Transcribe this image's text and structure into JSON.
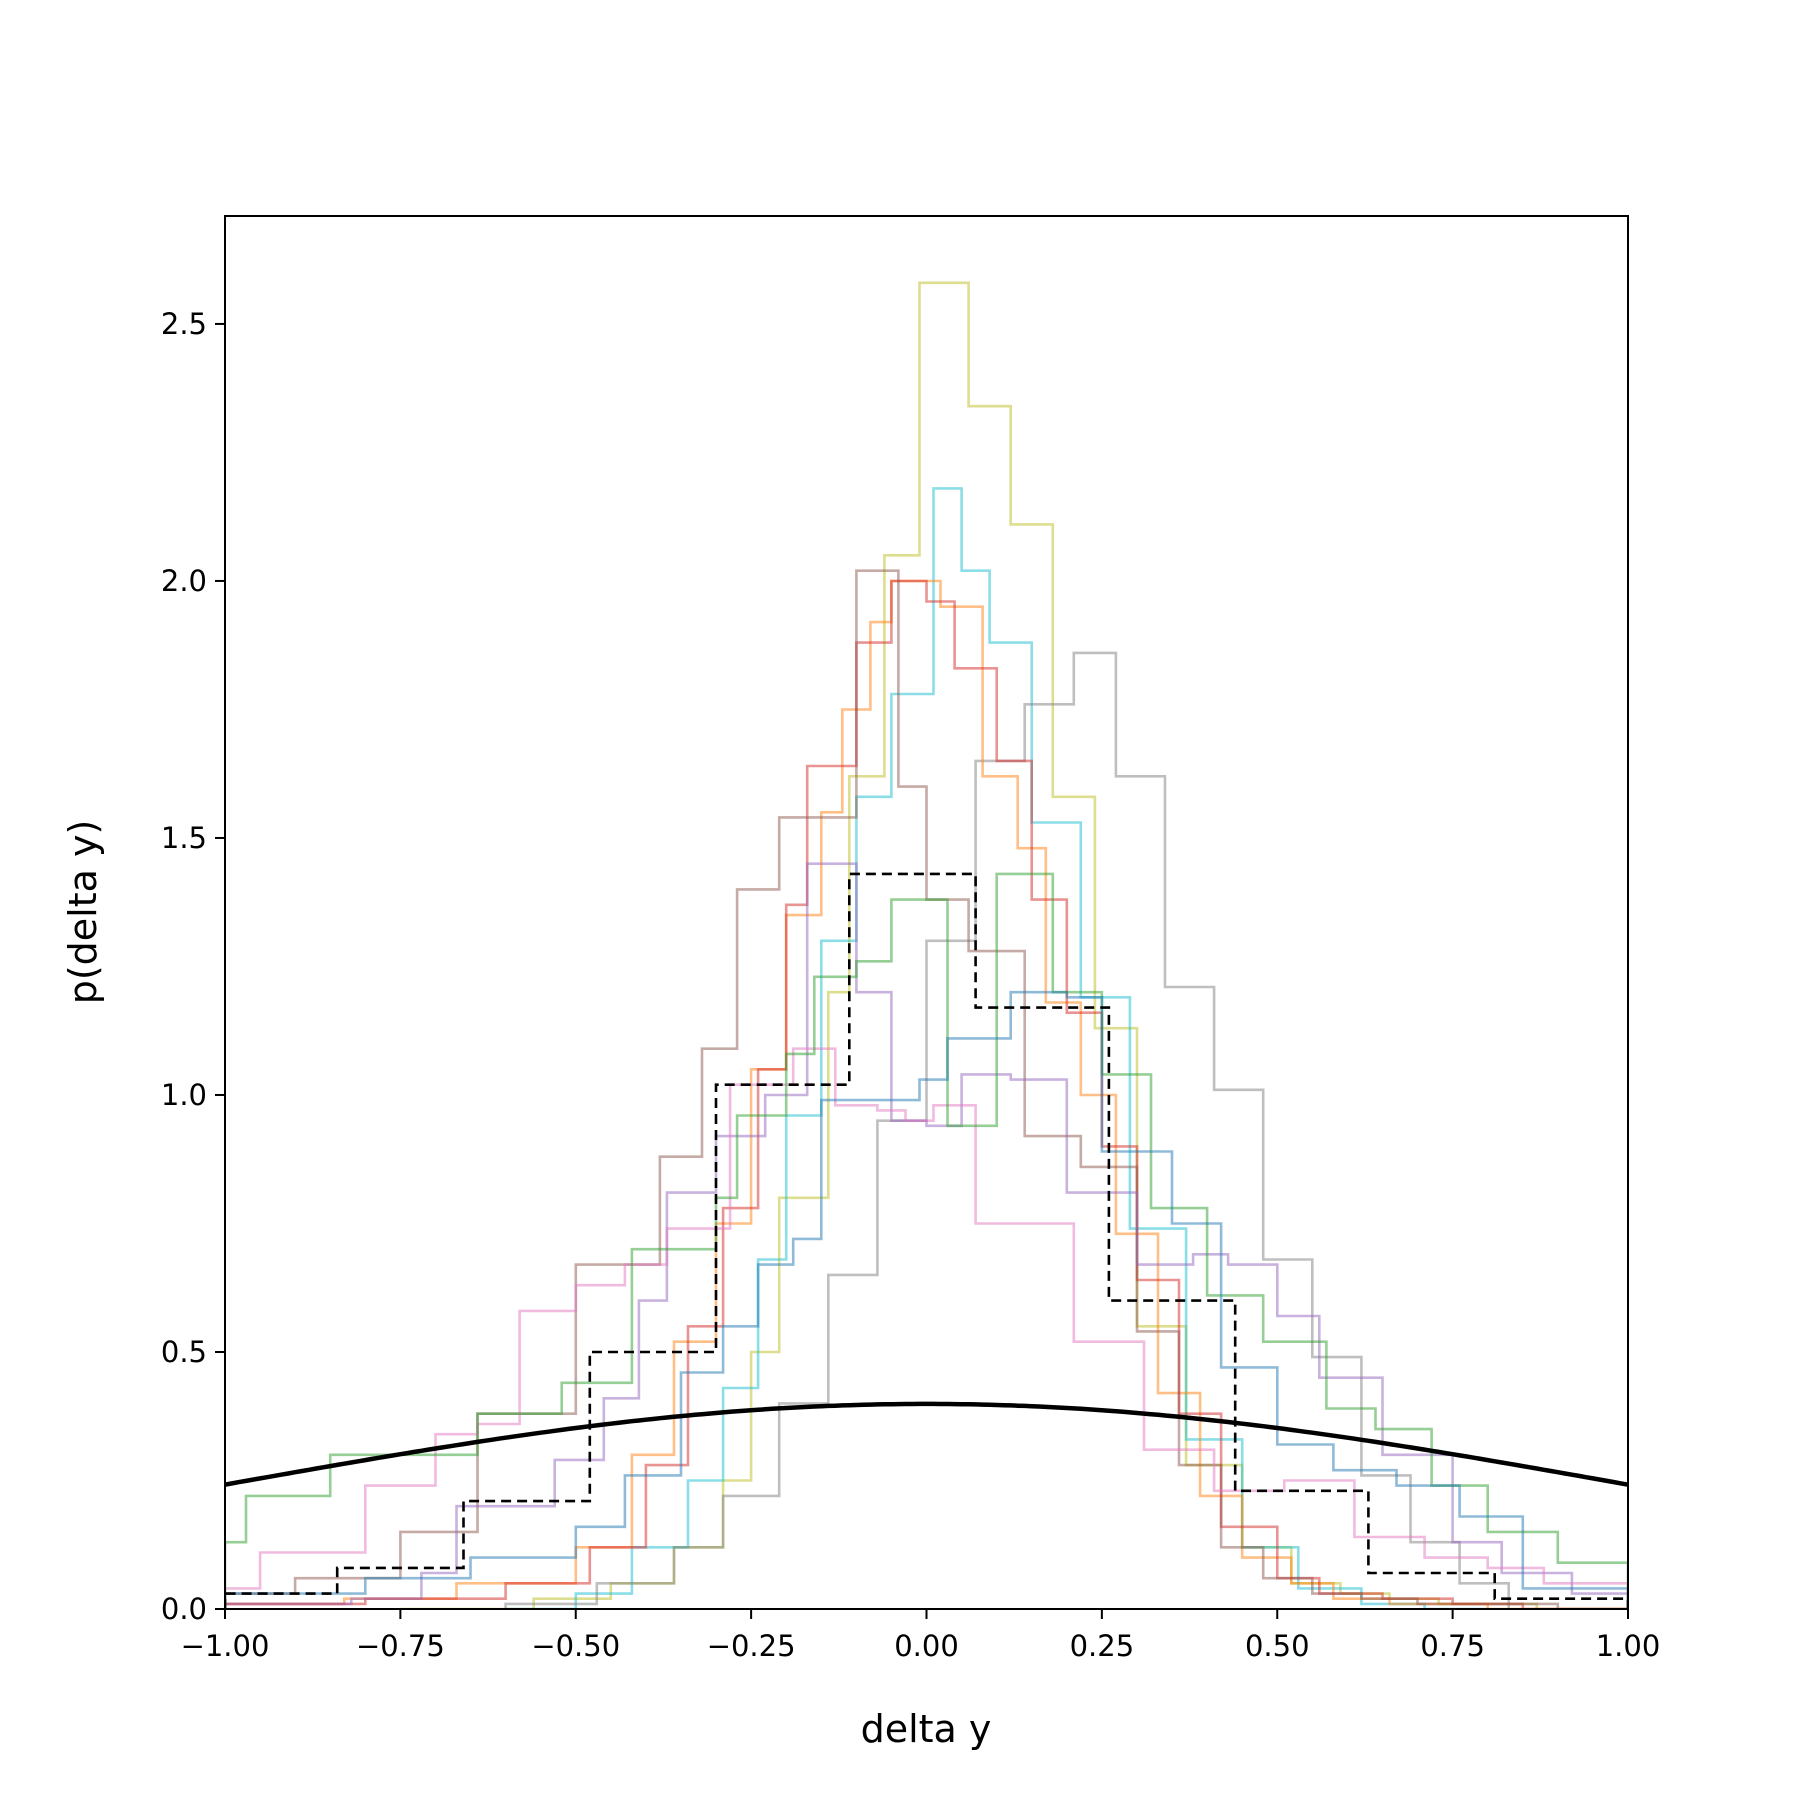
{
  "chart_data": {
    "type": "line",
    "title": "",
    "xlabel": "delta y",
    "ylabel": "p(delta y)",
    "xlim": [
      -1.0,
      1.0
    ],
    "ylim": [
      0.0,
      2.71
    ],
    "grid": false,
    "legend": "none",
    "x_ticks": [
      -1.0,
      -0.75,
      -0.5,
      -0.25,
      0.0,
      0.25,
      0.5,
      0.75,
      1.0
    ],
    "x_tick_labels": [
      "−1.00",
      "−0.75",
      "−0.50",
      "−0.25",
      "0.00",
      "0.25",
      "0.50",
      "0.75",
      "1.00"
    ],
    "y_ticks": [
      0.0,
      0.5,
      1.0,
      1.5,
      2.0,
      2.5
    ],
    "y_tick_labels": [
      "0.0",
      "0.5",
      "1.0",
      "1.5",
      "2.0",
      "2.5"
    ],
    "step_series": [
      {
        "color": "#bcbd22",
        "edges": [
          -0.75,
          -0.56,
          -0.45,
          -0.36,
          -0.29,
          -0.25,
          -0.21,
          -0.14,
          -0.11,
          -0.06,
          -0.01,
          0.06,
          0.12,
          0.18,
          0.24,
          0.3,
          0.37,
          0.45,
          0.52,
          0.59,
          0.66,
          0.73,
          0.8,
          0.87,
          0.94,
          1.0
        ],
        "values": [
          0.0,
          0.02,
          0.05,
          0.12,
          0.25,
          0.5,
          0.8,
          1.2,
          1.62,
          2.05,
          2.58,
          2.34,
          2.11,
          1.58,
          1.13,
          0.55,
          0.28,
          0.12,
          0.05,
          0.03,
          0.02,
          0.01,
          0.01,
          0.0,
          0.0
        ]
      },
      {
        "color": "#17becf",
        "edges": [
          -0.6,
          -0.5,
          -0.42,
          -0.34,
          -0.29,
          -0.24,
          -0.2,
          -0.15,
          -0.1,
          -0.05,
          0.01,
          0.05,
          0.09,
          0.15,
          0.22,
          0.29,
          0.37,
          0.45,
          0.53,
          0.62,
          0.71,
          0.8
        ],
        "values": [
          0.0,
          0.03,
          0.12,
          0.25,
          0.43,
          0.68,
          0.96,
          1.3,
          1.58,
          1.78,
          2.18,
          2.02,
          1.88,
          1.53,
          1.19,
          0.74,
          0.33,
          0.12,
          0.04,
          0.01,
          0.0
        ]
      },
      {
        "color": "#7f7f7f",
        "edges": [
          -0.6,
          -0.47,
          -0.36,
          -0.29,
          -0.21,
          -0.14,
          -0.07,
          0.0,
          0.07,
          0.14,
          0.21,
          0.27,
          0.34,
          0.41,
          0.48,
          0.55,
          0.62,
          0.69,
          0.76,
          0.83
        ],
        "values": [
          0.01,
          0.05,
          0.12,
          0.22,
          0.4,
          0.65,
          0.95,
          1.3,
          1.65,
          1.76,
          1.86,
          1.62,
          1.21,
          1.01,
          0.68,
          0.49,
          0.26,
          0.13,
          0.05
        ]
      },
      {
        "color": "#ff7f0e",
        "edges": [
          -1.0,
          -0.83,
          -0.67,
          -0.5,
          -0.42,
          -0.36,
          -0.3,
          -0.25,
          -0.2,
          -0.15,
          -0.12,
          -0.08,
          -0.05,
          0.02,
          0.08,
          0.13,
          0.17,
          0.22,
          0.27,
          0.33,
          0.39,
          0.45,
          0.52,
          0.58,
          0.66,
          0.73,
          0.8,
          0.9,
          1.0
        ],
        "values": [
          0.01,
          0.02,
          0.05,
          0.12,
          0.3,
          0.52,
          0.75,
          1.05,
          1.35,
          1.55,
          1.75,
          1.92,
          2.0,
          1.95,
          1.62,
          1.48,
          1.18,
          1.0,
          0.73,
          0.42,
          0.22,
          0.1,
          0.05,
          0.02,
          0.01,
          0.01,
          0.0,
          0.0
        ]
      },
      {
        "color": "#d62728",
        "edges": [
          -1.0,
          -0.8,
          -0.6,
          -0.48,
          -0.4,
          -0.34,
          -0.29,
          -0.24,
          -0.2,
          -0.17,
          -0.1,
          -0.05,
          0.0,
          0.04,
          0.1,
          0.15,
          0.2,
          0.25,
          0.3,
          0.36,
          0.42,
          0.5,
          0.56,
          0.65,
          0.75,
          0.85,
          1.0
        ],
        "values": [
          0.01,
          0.02,
          0.05,
          0.12,
          0.28,
          0.55,
          0.78,
          1.05,
          1.37,
          1.64,
          1.88,
          2.0,
          1.96,
          1.83,
          1.65,
          1.38,
          1.16,
          0.9,
          0.64,
          0.38,
          0.16,
          0.06,
          0.03,
          0.02,
          0.01,
          0.0
        ]
      },
      {
        "color": "#8c564b",
        "edges": [
          -1.0,
          -0.9,
          -0.75,
          -0.64,
          -0.5,
          -0.38,
          -0.32,
          -0.27,
          -0.21,
          -0.1,
          -0.04,
          0.0,
          0.06,
          0.14,
          0.22,
          0.3,
          0.36,
          0.42,
          0.48,
          0.55,
          0.62,
          0.7,
          0.8,
          0.9,
          1.0
        ],
        "values": [
          0.03,
          0.06,
          0.15,
          0.38,
          0.67,
          0.88,
          1.09,
          1.4,
          1.54,
          2.02,
          1.6,
          1.38,
          1.28,
          0.92,
          0.86,
          0.54,
          0.28,
          0.12,
          0.06,
          0.03,
          0.02,
          0.01,
          0.01,
          0.0
        ]
      },
      {
        "color": "#9467bd",
        "edges": [
          -1.0,
          -0.82,
          -0.72,
          -0.67,
          -0.53,
          -0.46,
          -0.41,
          -0.37,
          -0.3,
          -0.23,
          -0.17,
          -0.1,
          -0.05,
          0.0,
          0.05,
          0.12,
          0.2,
          0.3,
          0.38,
          0.43,
          0.5,
          0.56,
          0.65,
          0.75,
          0.82,
          0.92,
          1.0
        ],
        "values": [
          0.01,
          0.02,
          0.07,
          0.2,
          0.29,
          0.41,
          0.6,
          0.81,
          0.92,
          1.0,
          1.45,
          1.2,
          0.95,
          0.94,
          1.04,
          1.03,
          0.81,
          0.67,
          0.69,
          0.67,
          0.57,
          0.45,
          0.3,
          0.13,
          0.07,
          0.03
        ]
      },
      {
        "color": "#e377c2",
        "edges": [
          -1.0,
          -0.95,
          -0.8,
          -0.7,
          -0.64,
          -0.58,
          -0.5,
          -0.43,
          -0.37,
          -0.28,
          -0.19,
          -0.13,
          -0.07,
          -0.03,
          0.01,
          0.07,
          0.21,
          0.31,
          0.41,
          0.51,
          0.61,
          0.71,
          0.8,
          0.88,
          1.0
        ],
        "values": [
          0.04,
          0.11,
          0.24,
          0.34,
          0.36,
          0.58,
          0.63,
          0.67,
          0.74,
          1.02,
          1.09,
          0.98,
          0.97,
          0.95,
          0.98,
          0.75,
          0.52,
          0.31,
          0.23,
          0.25,
          0.14,
          0.1,
          0.08,
          0.05
        ]
      },
      {
        "color": "#2ca02c",
        "edges": [
          -1.0,
          -0.97,
          -0.85,
          -0.64,
          -0.52,
          -0.42,
          -0.3,
          -0.27,
          -0.2,
          -0.16,
          -0.1,
          -0.05,
          0.03,
          0.1,
          0.18,
          0.25,
          0.32,
          0.4,
          0.48,
          0.57,
          0.64,
          0.72,
          0.8,
          0.9,
          1.0
        ],
        "values": [
          0.13,
          0.22,
          0.3,
          0.38,
          0.44,
          0.7,
          0.8,
          0.96,
          1.08,
          1.23,
          1.26,
          1.38,
          0.94,
          1.43,
          1.2,
          1.04,
          0.78,
          0.61,
          0.52,
          0.39,
          0.35,
          0.24,
          0.15,
          0.09
        ]
      },
      {
        "color": "#1f77b4",
        "edges": [
          -1.0,
          -0.8,
          -0.65,
          -0.5,
          -0.43,
          -0.35,
          -0.29,
          -0.24,
          -0.19,
          -0.15,
          -0.01,
          0.03,
          0.12,
          0.2,
          0.25,
          0.35,
          0.42,
          0.5,
          0.58,
          0.67,
          0.76,
          0.85,
          1.0
        ],
        "values": [
          0.03,
          0.06,
          0.1,
          0.16,
          0.26,
          0.46,
          0.55,
          0.67,
          0.72,
          0.99,
          1.03,
          1.11,
          1.2,
          1.19,
          0.89,
          0.75,
          0.47,
          0.32,
          0.27,
          0.24,
          0.18,
          0.04
        ]
      }
    ],
    "dashed_step": {
      "color": "#000000",
      "edges": [
        -1.0,
        -0.84,
        -0.66,
        -0.48,
        -0.3,
        -0.11,
        0.07,
        0.26,
        0.44,
        0.63,
        0.81,
        1.0
      ],
      "values": [
        0.03,
        0.08,
        0.21,
        0.5,
        1.02,
        1.43,
        1.17,
        0.6,
        0.23,
        0.07,
        0.02
      ]
    },
    "curve": {
      "color": "#000000",
      "type": "normal_pdf",
      "mean": 0.0,
      "std": 1.0
    }
  }
}
